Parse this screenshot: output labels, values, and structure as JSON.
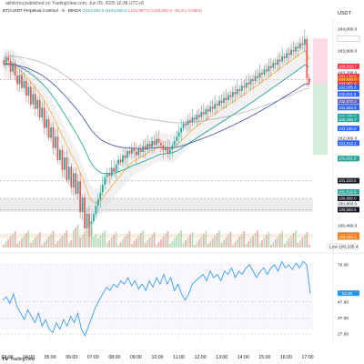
{
  "header": {
    "published": "akhitchoi published on TradingView.com, Jun 09, 2025 16:38 UTC+8",
    "symbol": "BTCUSDT Perpetual Contract · 5 · BINGX",
    "o_label": "O",
    "o_value": "103,082.6",
    "h_label": "H",
    "h_value": "103,082.6",
    "l_label": "L",
    "l_value": "102,997.0",
    "c_label": "C",
    "c_value": "103,002.9",
    "change": "−81.6 (−0.08%)",
    "currency": "USDT"
  },
  "price_tags": [
    {
      "text": "High",
      "price": 103823.7,
      "color": "#ffffff",
      "text_color": "#131722"
    },
    {
      "text": "103,823.7",
      "price": 103823.7,
      "color": "#ffffff",
      "text_color": "#131722"
    },
    {
      "text": "103,319.7",
      "price": 103319.7,
      "color": "#f23645"
    },
    {
      "text": "103,134.6",
      "price": 103134.6,
      "color": "#f23645"
    },
    {
      "text": "103,070.2",
      "price": 103070.2,
      "color": "#ef6c00"
    },
    {
      "text": "103,002.9",
      "price": 103002.9,
      "color": "#f23645"
    },
    {
      "text": "102,935.0",
      "price": 102935.0,
      "color": "#2962ff"
    },
    {
      "text": "102,811.6",
      "price": 102811.6,
      "color": "#2962ff"
    },
    {
      "text": "102,673.2",
      "price": 102673.2,
      "color": "#5b5fc7"
    },
    {
      "text": "102,563.9",
      "price": 102563.9,
      "color": "#2962ff"
    },
    {
      "text": "102,400.3",
      "price": 102400.3,
      "color": "#26a69a"
    },
    {
      "text": "102,346.7",
      "price": 102346.7,
      "color": "#26a69a"
    },
    {
      "text": "102,180.6",
      "price": 102180.6,
      "color": "#2962ff"
    },
    {
      "text": "101,912.1",
      "price": 101912.1,
      "color": "#2962ff"
    },
    {
      "text": "101,631.5",
      "price": 101631.5,
      "color": "#26a69a"
    },
    {
      "text": "101,018.6",
      "price": 101018.6,
      "color": "#26a69a"
    },
    {
      "text": "101,223.5",
      "price": 101223.5,
      "color": "#131722"
    },
    {
      "text": "100,899.0",
      "price": 100899.0,
      "color": "#131722"
    },
    {
      "text": "100,693.5",
      "price": 100693.5,
      "color": "#131722"
    },
    {
      "text": "100,228.0",
      "price": 100228.0,
      "color": "#f57f17"
    },
    {
      "text": "100,193.3",
      "price": 100193.3,
      "color": "#f57f17"
    }
  ],
  "volume_tag": {
    "label": "Low",
    "value": "100,105.4"
  },
  "rsi_tags": [
    {
      "text": "52.35",
      "value": 52.35,
      "color": "#2196f3"
    }
  ],
  "footer": {
    "brand": "TradingView"
  },
  "chart_data": {
    "type": "candlestick",
    "price_axis": {
      "min": 100000,
      "max": 104200,
      "ticks": [
        104000,
        103600,
        103200,
        102800,
        102400,
        102000,
        101600,
        101200,
        100800,
        100400
      ],
      "tick_labels": [
        "104,000.0",
        "103,600.0",
        "103,200.0",
        "102,800.0",
        "102,400.0",
        "102,000.0",
        "101,600.0",
        "101,200.0",
        "100,800.0",
        "100,400.0"
      ]
    },
    "rsi_axis": {
      "min": 22,
      "max": 75,
      "ticks": [
        70,
        47,
        37,
        27
      ],
      "tick_labels": [
        "70.00",
        "47.00",
        "37.00",
        "27.00"
      ]
    },
    "time_axis": {
      "labels": [
        "03:00",
        "04:00",
        "05:00",
        "06:00",
        "07:00",
        "08:00",
        "09:00",
        "10:00",
        "11:00",
        "12:00",
        "13:00",
        "14:00",
        "15:00",
        "16:00",
        "17:00"
      ],
      "start": "02:30",
      "end": "17:15"
    },
    "candles_close": [
      103350,
      103480,
      103420,
      103220,
      103380,
      103150,
      102990,
      103160,
      102920,
      103050,
      102780,
      102940,
      102620,
      102810,
      102540,
      102700,
      102380,
      102560,
      102190,
      102350,
      102010,
      102200,
      101820,
      102030,
      101600,
      101790,
      101420,
      101650,
      101240,
      101480,
      101100,
      101360,
      100980,
      101210,
      100650,
      100920,
      100350,
      100620,
      100210,
      100480,
      100610,
      100760,
      100880,
      101010,
      101150,
      101290,
      101360,
      101310,
      101460,
      101390,
      101520,
      101610,
      101560,
      101690,
      101640,
      101770,
      101720,
      101810,
      101760,
      101690,
      101810,
      101750,
      101860,
      101790,
      101900,
      101840,
      101950,
      101880,
      101990,
      101920,
      101870,
      101780,
      101840,
      101730,
      101800,
      101870,
      101950,
      102030,
      102110,
      102190,
      102270,
      102240,
      102330,
      102290,
      102380,
      102340,
      102430,
      102390,
      102480,
      102440,
      102530,
      102490,
      102580,
      102540,
      102630,
      102600,
      102690,
      102650,
      102740,
      102700,
      102790,
      102760,
      102850,
      102810,
      102900,
      102870,
      102960,
      102930,
      103020,
      102990,
      103080,
      103050,
      103140,
      103110,
      103200,
      103170,
      103260,
      103230,
      103320,
      103290,
      103380,
      103350,
      103440,
      103410,
      103500,
      103470,
      103560,
      103530,
      103620,
      103590,
      103680,
      103650,
      103740,
      103710,
      103820,
      103100,
      103003
    ],
    "rsi_values": [
      48,
      50,
      46,
      52,
      44,
      40,
      36,
      42,
      38,
      34,
      40,
      32,
      36,
      30,
      28,
      34,
      30,
      36,
      32,
      38,
      34,
      40,
      30,
      26,
      32,
      38,
      44,
      48,
      52,
      56,
      54,
      58,
      56,
      60,
      58,
      62,
      57,
      60,
      55,
      58,
      54,
      60,
      56,
      62,
      58,
      64,
      58,
      62,
      54,
      58,
      52,
      48,
      52,
      58,
      60,
      62,
      64,
      60,
      66,
      62,
      64,
      60,
      66,
      64,
      68,
      62,
      66,
      64,
      68,
      70,
      66,
      62,
      66,
      68,
      64,
      68,
      70,
      66,
      72,
      68,
      70,
      67,
      71,
      68,
      72,
      70,
      52
    ]
  }
}
